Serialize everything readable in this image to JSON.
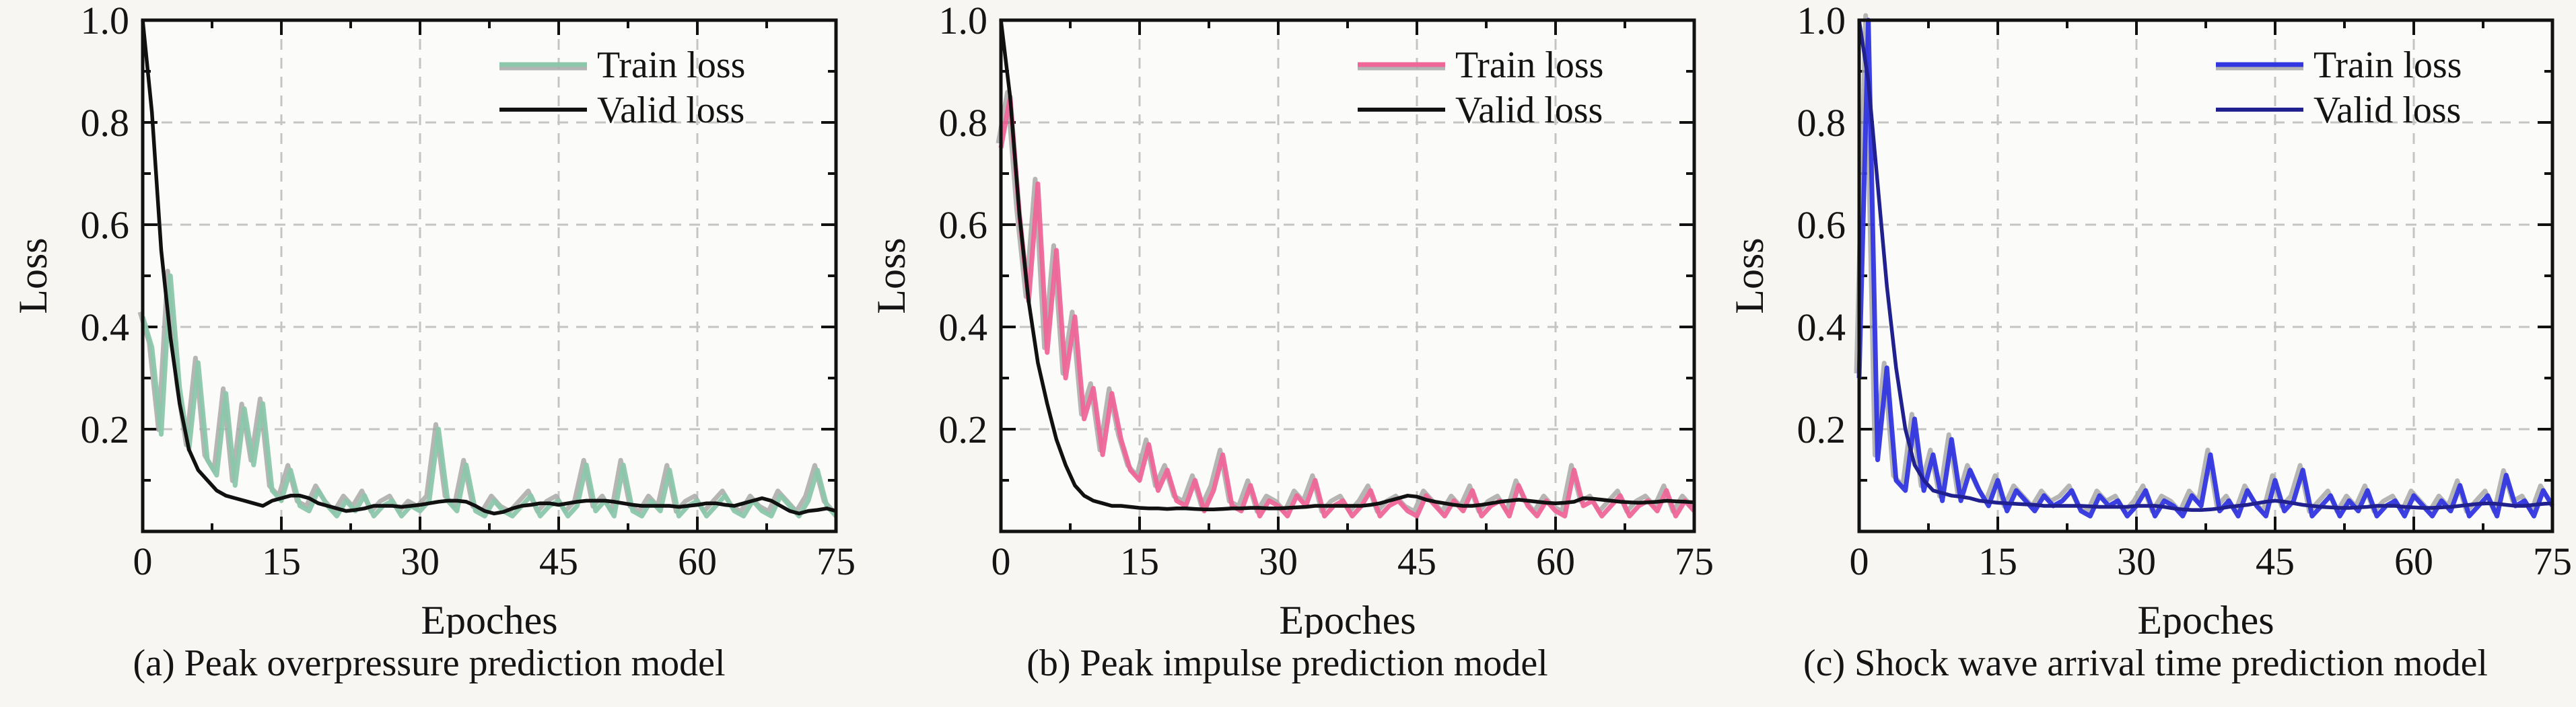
{
  "figure": {
    "background": "#f7f6f3",
    "plot_background": "#fbfbf9",
    "grid_color": "#c4c4c4",
    "axis_color": "#111111",
    "text_color": "#141414",
    "shadow_color": "#a8a8a8",
    "x_label": "Epoches",
    "y_label": "Loss",
    "x_range": [
      0,
      75
    ],
    "y_range": [
      0,
      1
    ],
    "x_ticks": [
      0,
      15,
      30,
      45,
      60,
      75
    ],
    "x_tick_labels": [
      "0",
      "15",
      "30",
      "45",
      "60",
      "75"
    ],
    "x_minor_ticks": [
      7.5,
      22.5,
      37.5,
      52.5,
      67.5
    ],
    "y_ticks": [
      0.2,
      0.4,
      0.6,
      0.8,
      1.0
    ],
    "y_tick_labels": [
      "0.2",
      "0.4",
      "0.6",
      "0.8",
      "1.0"
    ],
    "y_minor_ticks": [
      0.1,
      0.3,
      0.5,
      0.7,
      0.9
    ],
    "grid": "dashed",
    "legend_position": "top-right",
    "legend_labels": [
      "Train loss",
      "Valid loss"
    ]
  },
  "chart_data": [
    {
      "type": "line",
      "title": "(a) Peak overpressure prediction model",
      "xlabel": "Epoches",
      "ylabel": "Loss",
      "xlim": [
        0,
        75
      ],
      "ylim": [
        0,
        1
      ],
      "train_color": "#8cc7ab",
      "valid_color": "#111111",
      "x": [
        0,
        1,
        2,
        3,
        4,
        5,
        6,
        7,
        8,
        9,
        10,
        11,
        12,
        13,
        14,
        15,
        16,
        17,
        18,
        19,
        20,
        21,
        22,
        23,
        24,
        25,
        26,
        27,
        28,
        29,
        30,
        31,
        32,
        33,
        34,
        35,
        36,
        37,
        38,
        39,
        40,
        41,
        42,
        43,
        44,
        45,
        46,
        47,
        48,
        49,
        50,
        51,
        52,
        53,
        54,
        55,
        56,
        57,
        58,
        59,
        60,
        61,
        62,
        63,
        64,
        65,
        66,
        67,
        68,
        69,
        70,
        71,
        72,
        73,
        74,
        75
      ],
      "series": [
        {
          "name": "Train loss",
          "values": [
            0.42,
            0.36,
            0.19,
            0.5,
            0.28,
            0.16,
            0.33,
            0.14,
            0.11,
            0.27,
            0.09,
            0.24,
            0.13,
            0.25,
            0.08,
            0.06,
            0.12,
            0.05,
            0.04,
            0.08,
            0.05,
            0.03,
            0.06,
            0.04,
            0.07,
            0.03,
            0.05,
            0.06,
            0.03,
            0.05,
            0.04,
            0.06,
            0.2,
            0.06,
            0.04,
            0.13,
            0.04,
            0.03,
            0.06,
            0.04,
            0.03,
            0.05,
            0.07,
            0.03,
            0.05,
            0.06,
            0.03,
            0.05,
            0.13,
            0.04,
            0.06,
            0.03,
            0.13,
            0.04,
            0.03,
            0.06,
            0.04,
            0.12,
            0.03,
            0.05,
            0.06,
            0.03,
            0.05,
            0.07,
            0.04,
            0.03,
            0.06,
            0.04,
            0.03,
            0.07,
            0.05,
            0.03,
            0.06,
            0.12,
            0.05,
            0.03
          ]
        },
        {
          "name": "Valid loss",
          "values": [
            1.0,
            0.82,
            0.55,
            0.38,
            0.25,
            0.16,
            0.12,
            0.1,
            0.08,
            0.07,
            0.065,
            0.06,
            0.055,
            0.05,
            0.06,
            0.065,
            0.07,
            0.07,
            0.065,
            0.055,
            0.05,
            0.045,
            0.04,
            0.042,
            0.045,
            0.05,
            0.05,
            0.05,
            0.048,
            0.05,
            0.052,
            0.055,
            0.058,
            0.06,
            0.06,
            0.058,
            0.05,
            0.04,
            0.035,
            0.038,
            0.045,
            0.05,
            0.052,
            0.055,
            0.055,
            0.052,
            0.055,
            0.058,
            0.06,
            0.06,
            0.06,
            0.058,
            0.055,
            0.052,
            0.05,
            0.05,
            0.05,
            0.05,
            0.048,
            0.05,
            0.052,
            0.055,
            0.055,
            0.052,
            0.05,
            0.055,
            0.06,
            0.065,
            0.06,
            0.05,
            0.04,
            0.035,
            0.04,
            0.042,
            0.045,
            0.04
          ]
        }
      ]
    },
    {
      "type": "line",
      "title": "(b) Peak impulse prediction model",
      "xlabel": "Epoches",
      "ylabel": "Loss",
      "xlim": [
        0,
        75
      ],
      "ylim": [
        0,
        1
      ],
      "train_color": "#ef6698",
      "valid_color": "#111111",
      "x": [
        0,
        1,
        2,
        3,
        4,
        5,
        6,
        7,
        8,
        9,
        10,
        11,
        12,
        13,
        14,
        15,
        16,
        17,
        18,
        19,
        20,
        21,
        22,
        23,
        24,
        25,
        26,
        27,
        28,
        29,
        30,
        31,
        32,
        33,
        34,
        35,
        36,
        37,
        38,
        39,
        40,
        41,
        42,
        43,
        44,
        45,
        46,
        47,
        48,
        49,
        50,
        51,
        52,
        53,
        54,
        55,
        56,
        57,
        58,
        59,
        60,
        61,
        62,
        63,
        64,
        65,
        66,
        67,
        68,
        69,
        70,
        71,
        72,
        73,
        74,
        75
      ],
      "series": [
        {
          "name": "Train loss",
          "values": [
            0.75,
            0.85,
            0.62,
            0.45,
            0.68,
            0.35,
            0.55,
            0.3,
            0.42,
            0.22,
            0.28,
            0.15,
            0.27,
            0.18,
            0.12,
            0.1,
            0.17,
            0.08,
            0.12,
            0.06,
            0.05,
            0.1,
            0.04,
            0.08,
            0.15,
            0.05,
            0.04,
            0.09,
            0.03,
            0.06,
            0.05,
            0.03,
            0.07,
            0.05,
            0.1,
            0.03,
            0.05,
            0.06,
            0.03,
            0.05,
            0.08,
            0.03,
            0.05,
            0.06,
            0.04,
            0.03,
            0.07,
            0.05,
            0.03,
            0.06,
            0.04,
            0.08,
            0.03,
            0.05,
            0.06,
            0.03,
            0.09,
            0.05,
            0.03,
            0.06,
            0.04,
            0.03,
            0.12,
            0.05,
            0.06,
            0.03,
            0.05,
            0.07,
            0.03,
            0.05,
            0.06,
            0.04,
            0.08,
            0.03,
            0.06,
            0.04
          ]
        },
        {
          "name": "Valid loss",
          "values": [
            1.0,
            0.85,
            0.62,
            0.45,
            0.33,
            0.25,
            0.18,
            0.13,
            0.09,
            0.07,
            0.06,
            0.055,
            0.05,
            0.05,
            0.048,
            0.046,
            0.045,
            0.045,
            0.044,
            0.045,
            0.045,
            0.044,
            0.043,
            0.043,
            0.044,
            0.045,
            0.045,
            0.046,
            0.046,
            0.045,
            0.045,
            0.046,
            0.047,
            0.048,
            0.05,
            0.05,
            0.05,
            0.05,
            0.05,
            0.05,
            0.052,
            0.055,
            0.06,
            0.065,
            0.07,
            0.068,
            0.062,
            0.058,
            0.055,
            0.052,
            0.05,
            0.05,
            0.052,
            0.055,
            0.058,
            0.06,
            0.062,
            0.06,
            0.058,
            0.056,
            0.055,
            0.056,
            0.058,
            0.065,
            0.064,
            0.062,
            0.06,
            0.058,
            0.057,
            0.056,
            0.057,
            0.058,
            0.06,
            0.059,
            0.058,
            0.057
          ]
        }
      ]
    },
    {
      "type": "line",
      "title": "(c) Shock wave arrival time prediction model",
      "xlabel": "Epoches",
      "ylabel": "Loss",
      "xlim": [
        0,
        75
      ],
      "ylim": [
        0,
        1
      ],
      "train_color": "#3236e0",
      "valid_color": "#20208f",
      "x": [
        0,
        1,
        2,
        3,
        4,
        5,
        6,
        7,
        8,
        9,
        10,
        11,
        12,
        13,
        14,
        15,
        16,
        17,
        18,
        19,
        20,
        21,
        22,
        23,
        24,
        25,
        26,
        27,
        28,
        29,
        30,
        31,
        32,
        33,
        34,
        35,
        36,
        37,
        38,
        39,
        40,
        41,
        42,
        43,
        44,
        45,
        46,
        47,
        48,
        49,
        50,
        51,
        52,
        53,
        54,
        55,
        56,
        57,
        58,
        59,
        60,
        61,
        62,
        63,
        64,
        65,
        66,
        67,
        68,
        69,
        70,
        71,
        72,
        73,
        74,
        75
      ],
      "series": [
        {
          "name": "Train loss",
          "values": [
            0.3,
            1.0,
            0.14,
            0.32,
            0.1,
            0.08,
            0.22,
            0.08,
            0.15,
            0.06,
            0.18,
            0.06,
            0.12,
            0.08,
            0.05,
            0.1,
            0.04,
            0.08,
            0.06,
            0.04,
            0.07,
            0.05,
            0.06,
            0.08,
            0.04,
            0.03,
            0.07,
            0.05,
            0.06,
            0.03,
            0.05,
            0.08,
            0.03,
            0.06,
            0.05,
            0.03,
            0.07,
            0.05,
            0.15,
            0.04,
            0.06,
            0.03,
            0.08,
            0.05,
            0.03,
            0.1,
            0.04,
            0.06,
            0.12,
            0.03,
            0.05,
            0.07,
            0.03,
            0.06,
            0.04,
            0.08,
            0.03,
            0.05,
            0.06,
            0.03,
            0.07,
            0.05,
            0.03,
            0.06,
            0.04,
            0.09,
            0.03,
            0.05,
            0.07,
            0.03,
            0.11,
            0.05,
            0.06,
            0.03,
            0.08,
            0.05
          ]
        },
        {
          "name": "Valid loss",
          "values": [
            1.0,
            0.88,
            0.68,
            0.48,
            0.32,
            0.2,
            0.13,
            0.1,
            0.08,
            0.075,
            0.07,
            0.068,
            0.065,
            0.06,
            0.058,
            0.056,
            0.055,
            0.054,
            0.053,
            0.052,
            0.05,
            0.05,
            0.05,
            0.05,
            0.05,
            0.049,
            0.048,
            0.048,
            0.048,
            0.048,
            0.05,
            0.05,
            0.05,
            0.048,
            0.045,
            0.043,
            0.042,
            0.042,
            0.043,
            0.045,
            0.048,
            0.05,
            0.052,
            0.055,
            0.058,
            0.06,
            0.058,
            0.055,
            0.052,
            0.05,
            0.048,
            0.047,
            0.046,
            0.046,
            0.047,
            0.048,
            0.05,
            0.05,
            0.05,
            0.048,
            0.047,
            0.046,
            0.046,
            0.047,
            0.048,
            0.05,
            0.052,
            0.054,
            0.055,
            0.054,
            0.052,
            0.05,
            0.05,
            0.052,
            0.054,
            0.055
          ]
        }
      ]
    }
  ]
}
